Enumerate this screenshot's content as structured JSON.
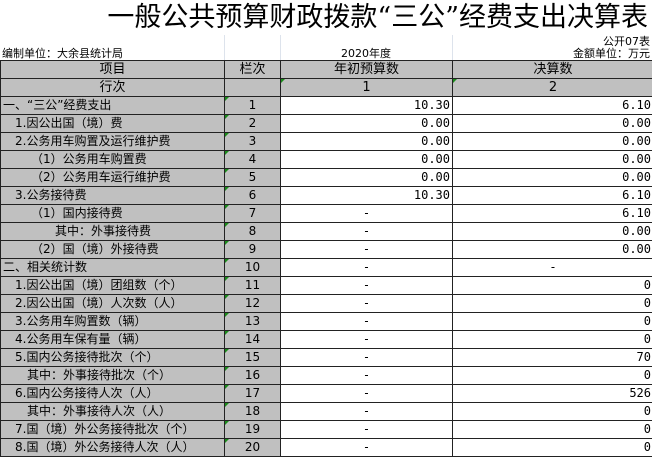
{
  "title": "一般公共预算财政拨款“三公”经费支出决算表",
  "table_code": "公开07表",
  "unit_org": "编制单位：大余县统计局",
  "year": "2020年度",
  "amount_unit": "金额单位：万元",
  "headers": {
    "item": "项目",
    "line": "栏次",
    "budget": "年初预算数",
    "final": "决算数"
  },
  "col_index_row": {
    "label": "行次",
    "line": "",
    "budget": "1",
    "final": "2"
  },
  "rows": [
    {
      "item": "一、“三公”经费支出",
      "line": "1",
      "budget": "10.30",
      "final": "6.10"
    },
    {
      "item": "1.因公出国（境）费",
      "line": "2",
      "budget": "0.00",
      "final": "0.00"
    },
    {
      "item": "2.公务用车购置及运行维护费",
      "line": "3",
      "budget": "0.00",
      "final": "0.00"
    },
    {
      "item": "（1）公务用车购置费",
      "line": "4",
      "budget": "0.00",
      "final": "0.00"
    },
    {
      "item": "（2）公务用车运行维护费",
      "line": "5",
      "budget": "0.00",
      "final": "0.00"
    },
    {
      "item": "3.公务接待费",
      "line": "6",
      "budget": "10.30",
      "final": "6.10"
    },
    {
      "item": "（1）国内接待费",
      "line": "7",
      "budget": "-",
      "final": "6.10"
    },
    {
      "item": "其中：外事接待费",
      "line": "8",
      "budget": "-",
      "final": "0.00"
    },
    {
      "item": "（2）国（境）外接待费",
      "line": "9",
      "budget": "-",
      "final": "0.00"
    },
    {
      "item": "二、相关统计数",
      "line": "10",
      "budget": "-",
      "final": "-"
    },
    {
      "item": "1.因公出国（境）团组数（个）",
      "line": "11",
      "budget": "-",
      "final": "0"
    },
    {
      "item": "2.因公出国（境）人次数（人）",
      "line": "12",
      "budget": "-",
      "final": "0"
    },
    {
      "item": "3.公务用车购置数（辆）",
      "line": "13",
      "budget": "-",
      "final": "0"
    },
    {
      "item": "4.公务用车保有量（辆）",
      "line": "14",
      "budget": "-",
      "final": "0"
    },
    {
      "item": "5.国内公务接待批次（个）",
      "line": "15",
      "budget": "-",
      "final": "70"
    },
    {
      "item": "其中：外事接待批次（个）",
      "line": "16",
      "budget": "-",
      "final": "0"
    },
    {
      "item": "6.国内公务接待人次（人）",
      "line": "17",
      "budget": "-",
      "final": "526"
    },
    {
      "item": "其中：外事接待人次（人）",
      "line": "18",
      "budget": "-",
      "final": "0"
    },
    {
      "item": "7.国（境）外公务接待批次（个）",
      "line": "19",
      "budget": "-",
      "final": "0"
    },
    {
      "item": "8.国（境）外公务接待人次（人）",
      "line": "20",
      "budget": "-",
      "final": "0"
    }
  ]
}
